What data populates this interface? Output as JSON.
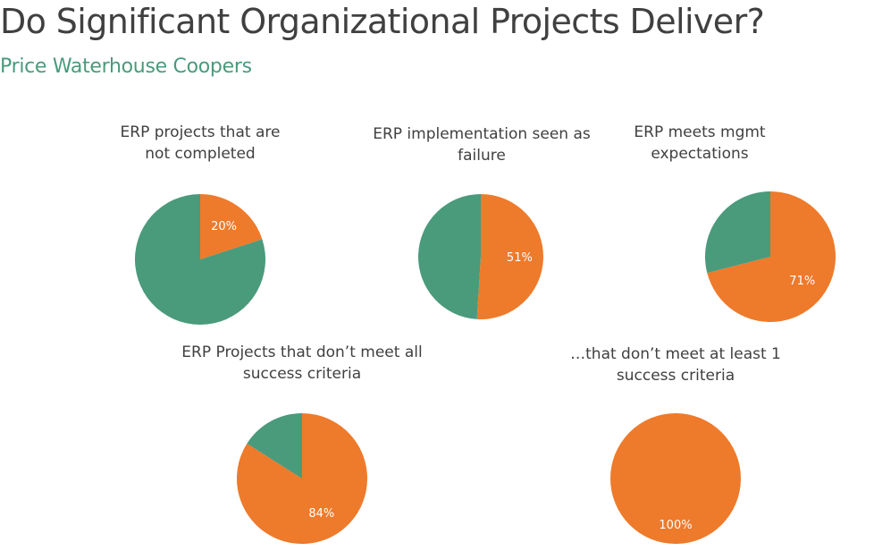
{
  "title": "Do Significant Organizational Projects Deliver?",
  "subtitle": "Price Waterhouse Coopers",
  "colors": {
    "accent": "#ee7a2b",
    "remainder": "#4a9a7c",
    "title": "#404040",
    "subtitle": "#4a9a7c"
  },
  "chart_data": [
    {
      "type": "pie",
      "title": "ERP projects that are not completed",
      "value_percent": 20,
      "value_label": "20%",
      "slices": [
        {
          "value": 20,
          "color": "#ee7a2b"
        },
        {
          "value": 80,
          "color": "#4a9a7c"
        }
      ]
    },
    {
      "type": "pie",
      "title": "ERP implementation seen as failure",
      "value_percent": 51,
      "value_label": "51%",
      "slices": [
        {
          "value": 51,
          "color": "#ee7a2b"
        },
        {
          "value": 49,
          "color": "#4a9a7c"
        }
      ]
    },
    {
      "type": "pie",
      "title": "ERP meets mgmt expectations",
      "value_percent": 71,
      "value_label": "71%",
      "slices": [
        {
          "value": 71,
          "color": "#ee7a2b"
        },
        {
          "value": 29,
          "color": "#4a9a7c"
        }
      ]
    },
    {
      "type": "pie",
      "title": "ERP Projects that don’t meet all success criteria",
      "value_percent": 84,
      "value_label": "84%",
      "slices": [
        {
          "value": 84,
          "color": "#ee7a2b"
        },
        {
          "value": 16,
          "color": "#4a9a7c"
        }
      ]
    },
    {
      "type": "pie",
      "title": "…that don’t meet at least 1 success criteria",
      "value_percent": 100,
      "value_label": "100%",
      "slices": [
        {
          "value": 100,
          "color": "#ee7a2b"
        },
        {
          "value": 0,
          "color": "#4a9a7c"
        }
      ]
    }
  ]
}
